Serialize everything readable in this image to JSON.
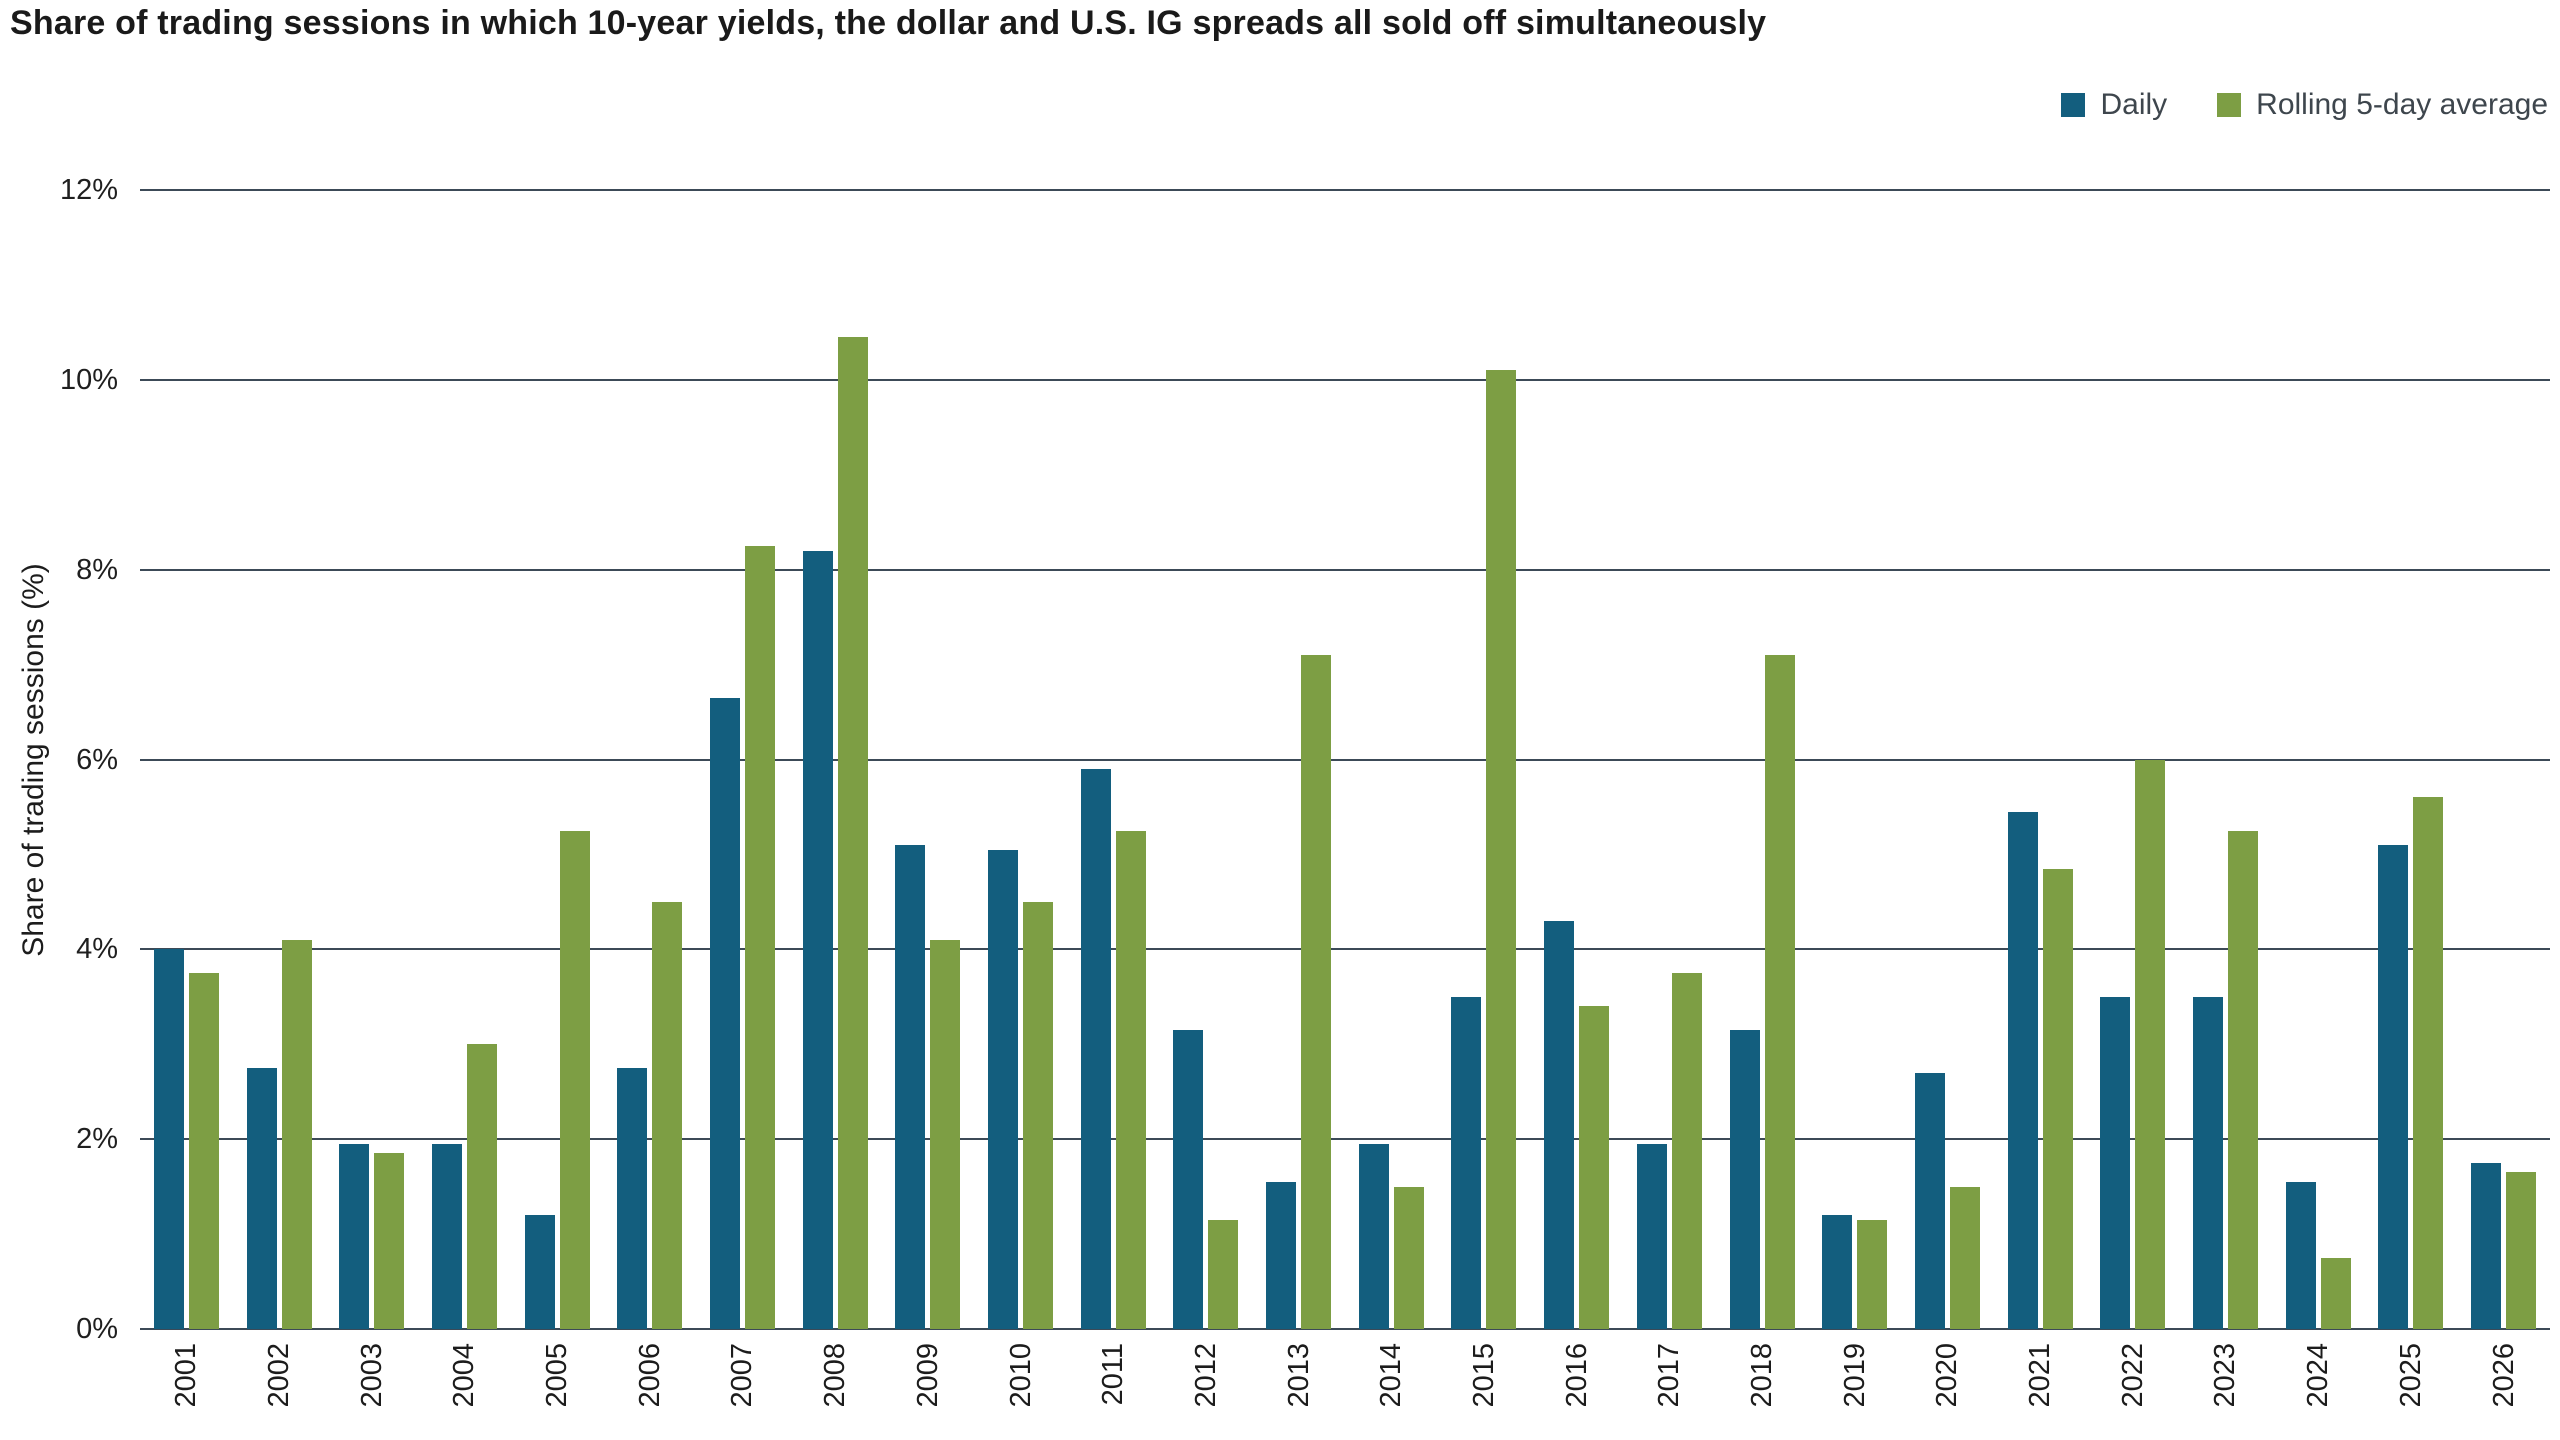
{
  "title": "Share of trading sessions in which 10-year yields, the dollar and U.S. IG spreads all sold off simultaneously",
  "chart_data": {
    "type": "bar",
    "title": "Share of trading sessions in which 10-year yields, the dollar and U.S. IG spreads all sold off simultaneously",
    "xlabel": "",
    "ylabel": "Share of trading sessions (%)",
    "ylim": [
      0,
      12
    ],
    "grid": true,
    "grid_color": "#3c4a57",
    "legend_position": "top-right",
    "y_ticks": [
      {
        "value": 0,
        "label": "0%"
      },
      {
        "value": 2,
        "label": "2%"
      },
      {
        "value": 4,
        "label": "4%"
      },
      {
        "value": 6,
        "label": "6%"
      },
      {
        "value": 8,
        "label": "8%"
      },
      {
        "value": 10,
        "label": "10%"
      },
      {
        "value": 12,
        "label": "12%"
      }
    ],
    "categories": [
      "2001",
      "2002",
      "2003",
      "2004",
      "2005",
      "2006",
      "2007",
      "2008",
      "2009",
      "2010",
      "2011",
      "2012",
      "2013",
      "2014",
      "2015",
      "2016",
      "2017",
      "2018",
      "2019",
      "2020",
      "2021",
      "2022",
      "2023",
      "2024",
      "2025",
      "2026"
    ],
    "series": [
      {
        "name": "Daily",
        "color": "#135e7e",
        "values": [
          4.0,
          2.75,
          1.95,
          1.95,
          1.2,
          2.75,
          6.65,
          8.2,
          5.1,
          5.05,
          5.9,
          3.15,
          1.55,
          1.95,
          3.5,
          4.3,
          1.95,
          3.15,
          1.2,
          2.7,
          5.45,
          3.5,
          3.5,
          1.55,
          5.1,
          1.75
        ]
      },
      {
        "name": "Rolling 5-day average",
        "color": "#7d9e44",
        "values": [
          3.75,
          4.1,
          1.85,
          3.0,
          5.25,
          4.5,
          8.25,
          10.45,
          4.1,
          4.5,
          5.25,
          1.15,
          7.1,
          1.5,
          10.1,
          3.4,
          3.75,
          7.1,
          1.15,
          1.5,
          4.85,
          6.0,
          5.25,
          0.75,
          5.6,
          1.65
        ]
      }
    ]
  }
}
